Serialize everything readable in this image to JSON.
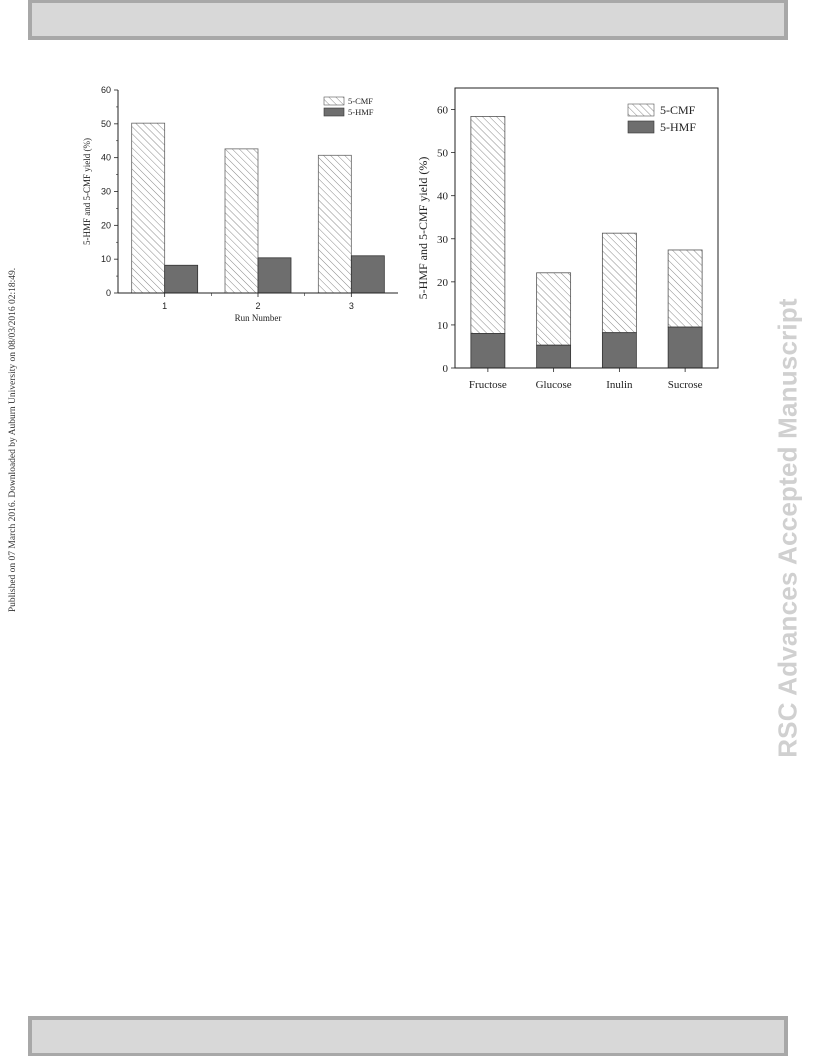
{
  "header_band": "",
  "footer_band": "",
  "side_text": "Published on 07 March 2016. Downloaded by Auburn University on 08/03/2016 02:18:49.",
  "watermark": "RSC Advances Accepted Manuscript",
  "colors": {
    "cmf_fill": "#ffffff",
    "cmf_hatch": "#8a8a8a",
    "hmf_fill": "#6e6e6e",
    "band": "#d8d8d8"
  },
  "chart_data": [
    {
      "type": "bar",
      "title": "",
      "xlabel": "Run Number",
      "ylabel": "5-HMF and 5-CMF yield (%)",
      "categories": [
        "1",
        "2",
        "3"
      ],
      "series": [
        {
          "name": "5-CMF",
          "values": [
            50.2,
            42.6,
            40.7
          ]
        },
        {
          "name": "5-HMF",
          "values": [
            8.2,
            10.4,
            11.0
          ]
        }
      ],
      "ylim": [
        0,
        60
      ],
      "yticks": [
        0,
        10,
        20,
        30,
        40,
        50,
        60
      ],
      "grid": false,
      "legend": "top-right"
    },
    {
      "type": "bar",
      "stacked": true,
      "title": "",
      "xlabel": "",
      "ylabel": "5-HMF and 5-CMF yield (%)",
      "categories": [
        "Fructose",
        "Glucose",
        "Inulin",
        "Sucrose"
      ],
      "series": [
        {
          "name": "5-HMF",
          "values": [
            8.0,
            5.3,
            8.2,
            9.5
          ]
        },
        {
          "name": "5-CMF",
          "values": [
            50.4,
            16.8,
            23.1,
            17.9
          ]
        }
      ],
      "ylim": [
        0,
        65
      ],
      "yticks": [
        0,
        10,
        20,
        30,
        40,
        50,
        60
      ],
      "grid": false,
      "legend": "top-right"
    }
  ]
}
